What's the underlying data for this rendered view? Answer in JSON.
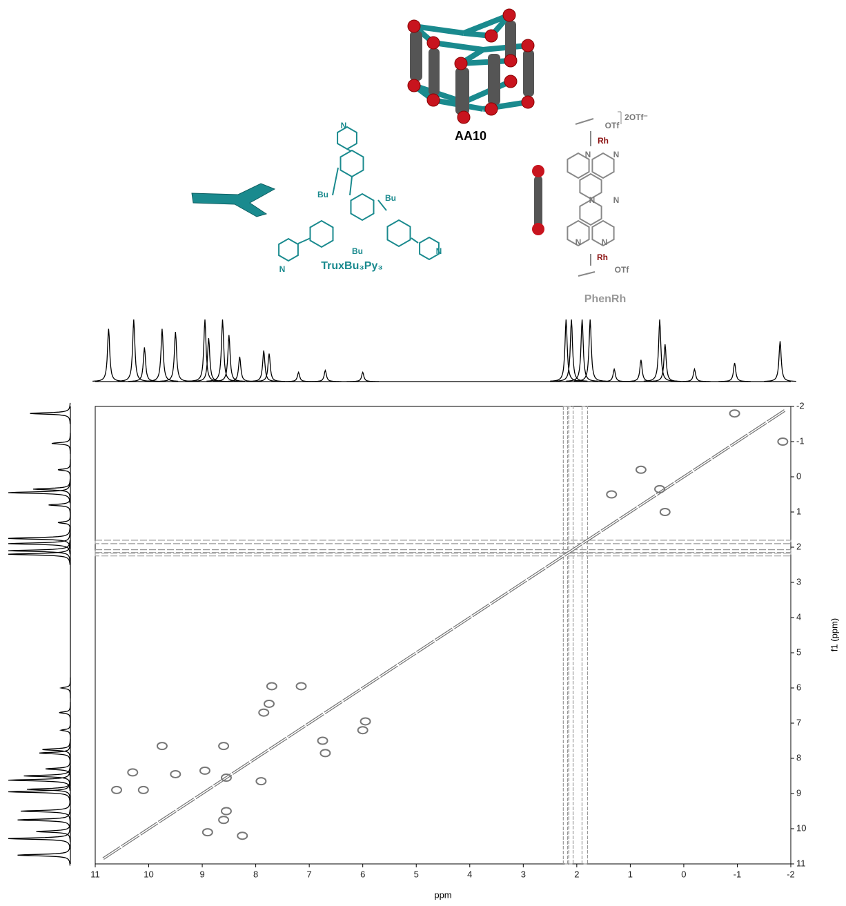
{
  "chart_data": {
    "type": "scatter",
    "x_label": "ppm",
    "y_label": "f1 (ppm)",
    "xlim": [
      11,
      -2
    ],
    "xticks": [
      11,
      10,
      9,
      8,
      7,
      6,
      5,
      4,
      3,
      2,
      1,
      0,
      -1,
      -2
    ],
    "ylim": [
      11,
      -2
    ],
    "yticks": [
      -2,
      -1,
      0,
      1,
      2,
      3,
      4,
      5,
      6,
      7,
      8,
      9,
      10,
      11
    ],
    "color": "#777777",
    "x": [
      10.6,
      10.3,
      10.1,
      9.75,
      9.5,
      8.95,
      8.6,
      8.55,
      7.85,
      7.75,
      7.7,
      7.15,
      8.9,
      8.55,
      8.6,
      8.25,
      6.75,
      6.7,
      6.0,
      5.95,
      7.9,
      0.35,
      0.8,
      -0.95,
      -1.85,
      1.35,
      0.45
    ],
    "y": [
      8.9,
      8.4,
      8.9,
      7.65,
      8.45,
      8.35,
      7.65,
      8.55,
      6.7,
      6.45,
      5.95,
      5.95,
      10.1,
      9.5,
      9.75,
      10.2,
      7.5,
      7.85,
      7.2,
      6.95,
      8.65,
      1.0,
      -0.2,
      -1.8,
      -1.0,
      0.5,
      0.35
    ],
    "projection": {
      "ylim": [
        0,
        100
      ],
      "peaks": [
        10.75,
        10.28,
        10.08,
        9.75,
        9.5,
        8.95,
        8.88,
        8.62,
        8.5,
        8.3,
        7.85,
        7.75,
        7.2,
        6.7,
        6.0,
        2.2,
        2.1,
        1.9,
        1.75,
        1.3,
        0.8,
        0.45,
        0.35,
        -0.2,
        -0.95,
        -1.8
      ],
      "intensities": [
        85,
        100,
        55,
        85,
        80,
        100,
        70,
        100,
        75,
        40,
        50,
        45,
        15,
        18,
        15,
        100,
        100,
        100,
        100,
        20,
        35,
        100,
        60,
        20,
        30,
        65
      ]
    }
  },
  "structures": {
    "cage_name": "AA10",
    "ligand_name": "TruxBu₃Py₃",
    "ligand_labels": [
      "Bu",
      "Bu",
      "Bu",
      "N",
      "N",
      "N"
    ],
    "clip_name": "PhenRh",
    "clip_labels": [
      "2OTf⁻",
      "OTf",
      "Rh",
      "N",
      "N",
      "N",
      "N",
      "N",
      "N",
      "Rh",
      "OTf"
    ]
  }
}
